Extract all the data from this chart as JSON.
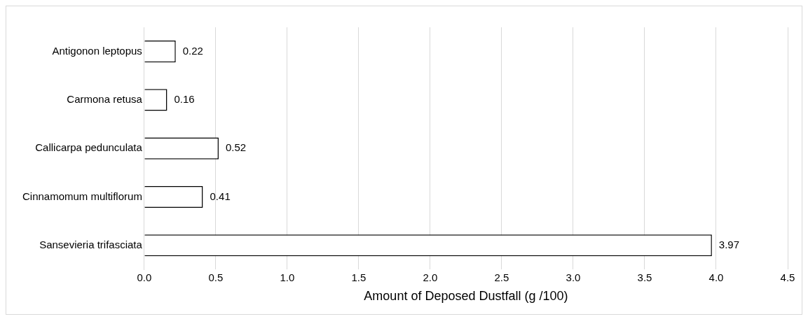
{
  "chart_data": {
    "type": "bar",
    "orientation": "horizontal",
    "xlabel": "Amount of Deposed Dustfall (g /100)",
    "categories": [
      "Antigonon leptopus",
      "Carmona retusa",
      "Callicarpa pedunculata",
      "Cinnamomum multiflorum",
      "Sansevieria trifasciata"
    ],
    "values": [
      0.22,
      0.16,
      0.52,
      0.41,
      3.97
    ],
    "color": "#ffffff",
    "xlim": [
      0,
      4.5
    ],
    "xticks": [
      {
        "value": 0,
        "label": "0.0"
      },
      {
        "value": 0.5,
        "label": "0.5"
      },
      {
        "value": 1,
        "label": "1.0"
      },
      {
        "value": 1.5,
        "label": "1.5"
      },
      {
        "value": 2,
        "label": "2.0"
      },
      {
        "value": 2.5,
        "label": "2.5"
      },
      {
        "value": 3,
        "label": "3.0"
      },
      {
        "value": 3.5,
        "label": "3.5"
      },
      {
        "value": 4,
        "label": "4.0"
      },
      {
        "value": 4.5,
        "label": "4.5"
      }
    ],
    "grid": "x",
    "data_labels": true,
    "legend": false
  }
}
